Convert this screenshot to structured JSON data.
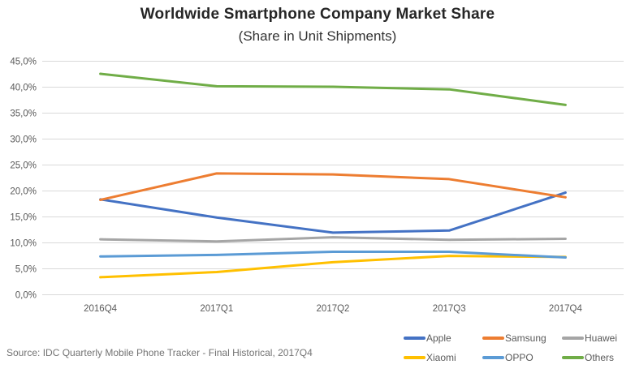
{
  "header": {
    "title": "Worldwide Smartphone Company Market Share",
    "subtitle": "(Share in Unit Shipments)"
  },
  "source": {
    "text": "Source: IDC Quarterly Mobile Phone Tracker - Final Historical, 2017Q4"
  },
  "colors": {
    "background": "#FFFFFF",
    "gridline": "#D9D9D9",
    "axis_label": "#595959",
    "title_text": "#262626",
    "source_text": "#737373"
  },
  "chart_data": {
    "type": "line",
    "title": "Worldwide Smartphone Company Market Share",
    "subtitle": "(Share in Unit Shipments)",
    "categories": [
      "2016Q4",
      "2017Q1",
      "2017Q2",
      "2017Q3",
      "2017Q4"
    ],
    "series": [
      {
        "name": "Apple",
        "color": "#4472C4",
        "values": [
          18.3,
          14.8,
          11.9,
          12.3,
          19.6
        ]
      },
      {
        "name": "Samsung",
        "color": "#ED7D31",
        "values": [
          18.2,
          23.3,
          23.1,
          22.2,
          18.7
        ]
      },
      {
        "name": "Huawei",
        "color": "#A5A5A5",
        "values": [
          10.6,
          10.2,
          11.0,
          10.5,
          10.7
        ]
      },
      {
        "name": "Xiaomi",
        "color": "#FFC000",
        "values": [
          3.3,
          4.3,
          6.2,
          7.4,
          7.2
        ]
      },
      {
        "name": "OPPO",
        "color": "#5B9BD5",
        "values": [
          7.3,
          7.6,
          8.2,
          8.2,
          7.1
        ]
      },
      {
        "name": "Others",
        "color": "#70AD47",
        "values": [
          42.5,
          40.1,
          40.0,
          39.5,
          36.5
        ]
      }
    ],
    "ylim": [
      0,
      45
    ],
    "y_ticks": [
      {
        "value": 0,
        "label": "0,0%"
      },
      {
        "value": 5,
        "label": "5,0%"
      },
      {
        "value": 10,
        "label": "10,0%"
      },
      {
        "value": 15,
        "label": "15,0%"
      },
      {
        "value": 20,
        "label": "20,0%"
      },
      {
        "value": 25,
        "label": "25,0%"
      },
      {
        "value": 30,
        "label": "30,0%"
      },
      {
        "value": 35,
        "label": "35,0%"
      },
      {
        "value": 40,
        "label": "40,0%"
      },
      {
        "value": 45,
        "label": "45,0%"
      }
    ],
    "grid": true,
    "legend_position": "bottom-right",
    "unit": "percent-of-unit-shipments"
  }
}
